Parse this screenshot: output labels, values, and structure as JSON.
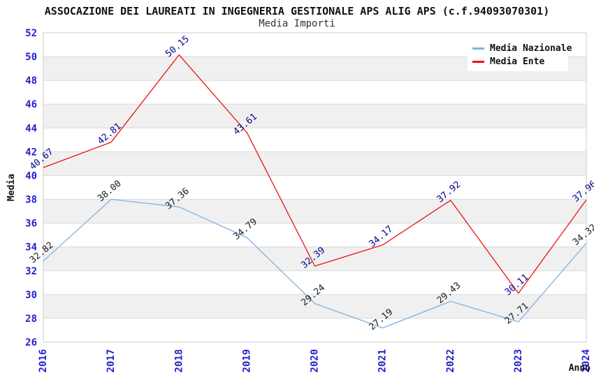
{
  "header": {
    "title": "ASSOCAZIONE DEI LAUREATI IN INGEGNERIA GESTIONALE APS ALIG APS (c.f.94093070301)",
    "subtitle": "Media Importi"
  },
  "legend": {
    "items": [
      {
        "label": "Media Nazionale",
        "color": "#7eb2e4"
      },
      {
        "label": "Media Ente",
        "color": "#ee1111"
      }
    ]
  },
  "chart_data": {
    "type": "line",
    "title": "ASSOCAZIONE DEI LAUREATI IN INGEGNERIA GESTIONALE APS ALIG APS (c.f.94093070301)",
    "subtitle": "Media Importi",
    "xlabel": "Anno",
    "ylabel": "Media",
    "x": [
      2016,
      2017,
      2018,
      2019,
      2020,
      2021,
      2022,
      2023,
      2024
    ],
    "series": [
      {
        "name": "Media Nazionale",
        "color": "#7eb2e4",
        "label_color": "#1a1a1a",
        "values": [
          32.82,
          38.0,
          37.36,
          34.79,
          29.24,
          27.19,
          29.43,
          27.71,
          34.32
        ]
      },
      {
        "name": "Media Ente",
        "color": "#ee1111",
        "label_color": "#00008b",
        "values": [
          40.67,
          42.81,
          50.15,
          43.61,
          32.39,
          34.17,
          37.92,
          30.11,
          37.96
        ]
      }
    ],
    "ylim": [
      26,
      52
    ],
    "ytick_step": 2,
    "grid": true,
    "legend_position": "top-right",
    "value_labels_shown": true,
    "label_format_decimals": 2,
    "tick_color": "#2222cc",
    "axis_label_color": "#111111",
    "band_color": "#f0f0f0",
    "grid_color": "#d9d9d9",
    "border_color": "#cccccc"
  }
}
